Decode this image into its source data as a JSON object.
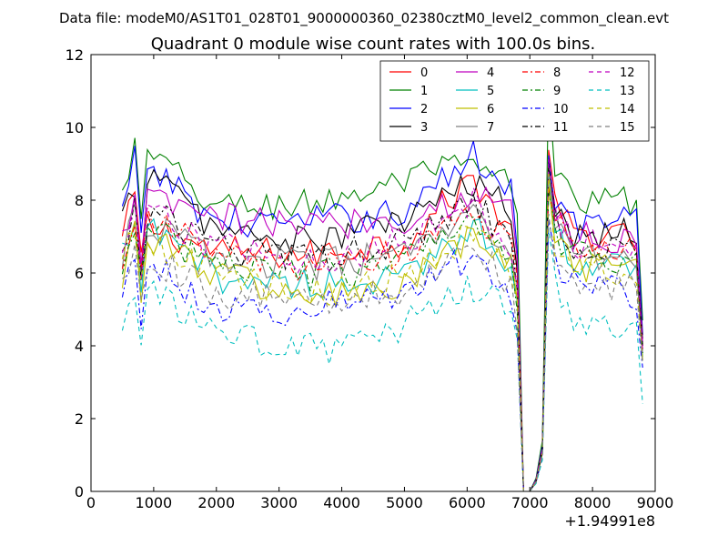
{
  "chart_data": {
    "type": "line",
    "suptitle": "Data file: modeM0/AS1T01_028T01_9000000360_02380cztM0_level2_common_clean.evt",
    "title": "Quadrant 0 module wise count rates with 100.0s bins.",
    "xlabel": "",
    "ylabel": "",
    "x_offset_label": "+1.94991e8",
    "xlim": [
      0,
      9000
    ],
    "ylim": [
      0,
      12
    ],
    "xticks": [
      0,
      1000,
      2000,
      3000,
      4000,
      5000,
      6000,
      7000,
      8000,
      9000
    ],
    "xtick_labels": [
      "0",
      "1000",
      "2000",
      "3000",
      "4000",
      "5000",
      "6000",
      "7000",
      "8000",
      "9000"
    ],
    "yticks": [
      0,
      2,
      4,
      6,
      8,
      10,
      12
    ],
    "ytick_labels": [
      "0",
      "2",
      "4",
      "6",
      "8",
      "10",
      "12"
    ],
    "x_range": [
      500,
      8800
    ],
    "bin_width": 100,
    "dip": {
      "x": [
        6800,
        6900,
        7000,
        7100,
        7200,
        7300
      ],
      "scale": [
        0.85,
        0.0,
        0.0,
        0.04,
        0.15,
        1.15
      ]
    },
    "legend": {
      "location": "upper right",
      "columns": 4
    },
    "series": [
      {
        "name": "0",
        "color": "#ff0000",
        "dash": "solid",
        "anchors": [
          [
            500,
            6.9
          ],
          [
            700,
            8.2
          ],
          [
            800,
            6.4
          ],
          [
            900,
            7.3
          ],
          [
            2000,
            6.6
          ],
          [
            3500,
            6.5
          ],
          [
            5000,
            6.9
          ],
          [
            6100,
            8.6
          ],
          [
            6800,
            6.9
          ],
          [
            7300,
            8.0
          ],
          [
            7700,
            7.1
          ],
          [
            8700,
            6.9
          ],
          [
            8800,
            4.0
          ]
        ]
      },
      {
        "name": "1",
        "color": "#008000",
        "dash": "solid",
        "anchors": [
          [
            500,
            8.1
          ],
          [
            700,
            9.5
          ],
          [
            800,
            7.2
          ],
          [
            900,
            9.3
          ],
          [
            2000,
            7.8
          ],
          [
            3500,
            7.9
          ],
          [
            5000,
            8.5
          ],
          [
            6000,
            9.0
          ],
          [
            6300,
            8.6
          ],
          [
            6800,
            8.5
          ],
          [
            7300,
            9.5
          ],
          [
            7700,
            7.9
          ],
          [
            8700,
            8.0
          ],
          [
            8800,
            4.7
          ]
        ]
      },
      {
        "name": "2",
        "color": "#0000ff",
        "dash": "solid",
        "anchors": [
          [
            500,
            7.6
          ],
          [
            700,
            9.1
          ],
          [
            800,
            6.7
          ],
          [
            900,
            9.0
          ],
          [
            2000,
            7.4
          ],
          [
            3500,
            7.4
          ],
          [
            5000,
            7.7
          ],
          [
            6100,
            9.2
          ],
          [
            6800,
            8.2
          ],
          [
            7300,
            8.4
          ],
          [
            7700,
            7.3
          ],
          [
            8700,
            7.5
          ],
          [
            8800,
            4.3
          ]
        ]
      },
      {
        "name": "3",
        "color": "#000000",
        "dash": "solid",
        "anchors": [
          [
            500,
            7.4
          ],
          [
            700,
            8.4
          ],
          [
            800,
            6.3
          ],
          [
            900,
            8.8
          ],
          [
            2000,
            7.2
          ],
          [
            3500,
            6.8
          ],
          [
            5000,
            7.5
          ],
          [
            6200,
            8.5
          ],
          [
            6800,
            7.4
          ],
          [
            7300,
            8.1
          ],
          [
            7700,
            7.1
          ],
          [
            8700,
            7.2
          ],
          [
            8800,
            4.2
          ]
        ]
      },
      {
        "name": "4",
        "color": "#bf00bf",
        "dash": "solid",
        "anchors": [
          [
            500,
            6.8
          ],
          [
            700,
            8.3
          ],
          [
            800,
            6.5
          ],
          [
            900,
            8.0
          ],
          [
            2000,
            7.5
          ],
          [
            3500,
            7.3
          ],
          [
            5000,
            7.5
          ],
          [
            6200,
            8.2
          ],
          [
            6800,
            7.6
          ],
          [
            7300,
            7.9
          ],
          [
            7700,
            7.0
          ],
          [
            8700,
            6.9
          ],
          [
            8800,
            4.1
          ]
        ]
      },
      {
        "name": "5",
        "color": "#00bfbf",
        "dash": "solid",
        "anchors": [
          [
            500,
            6.4
          ],
          [
            700,
            7.3
          ],
          [
            800,
            5.6
          ],
          [
            900,
            7.2
          ],
          [
            2000,
            5.9
          ],
          [
            3500,
            5.7
          ],
          [
            5000,
            5.8
          ],
          [
            6100,
            7.4
          ],
          [
            6800,
            6.1
          ],
          [
            7300,
            7.6
          ],
          [
            7700,
            6.3
          ],
          [
            8700,
            6.1
          ],
          [
            8800,
            3.7
          ]
        ]
      },
      {
        "name": "6",
        "color": "#bfbf00",
        "dash": "solid",
        "anchors": [
          [
            500,
            6.0
          ],
          [
            700,
            7.2
          ],
          [
            800,
            5.2
          ],
          [
            900,
            7.0
          ],
          [
            2000,
            6.0
          ],
          [
            3500,
            5.3
          ],
          [
            5000,
            5.6
          ],
          [
            6100,
            7.0
          ],
          [
            6800,
            6.0
          ],
          [
            7300,
            7.2
          ],
          [
            7700,
            6.1
          ],
          [
            8700,
            6.0
          ],
          [
            8800,
            3.6
          ]
        ]
      },
      {
        "name": "7",
        "color": "#808080",
        "dash": "solid",
        "anchors": [
          [
            500,
            6.5
          ],
          [
            700,
            7.5
          ],
          [
            800,
            5.8
          ],
          [
            900,
            7.4
          ],
          [
            2000,
            6.4
          ],
          [
            3500,
            6.2
          ],
          [
            5000,
            6.5
          ],
          [
            6100,
            7.5
          ],
          [
            6800,
            6.3
          ],
          [
            7300,
            7.5
          ],
          [
            7700,
            6.5
          ],
          [
            8700,
            6.4
          ],
          [
            8800,
            3.8
          ]
        ]
      },
      {
        "name": "8",
        "color": "#ff0000",
        "dash": "dashdot",
        "anchors": [
          [
            500,
            6.4
          ],
          [
            700,
            7.6
          ],
          [
            800,
            5.9
          ],
          [
            900,
            7.5
          ],
          [
            2000,
            6.5
          ],
          [
            3500,
            6.1
          ],
          [
            5000,
            6.5
          ],
          [
            6100,
            7.8
          ],
          [
            6800,
            6.4
          ],
          [
            7300,
            7.6
          ],
          [
            7700,
            6.7
          ],
          [
            8700,
            6.5
          ],
          [
            8800,
            3.9
          ]
        ]
      },
      {
        "name": "9",
        "color": "#008000",
        "dash": "dashdot",
        "anchors": [
          [
            500,
            6.2
          ],
          [
            700,
            7.2
          ],
          [
            800,
            5.7
          ],
          [
            900,
            7.2
          ],
          [
            2000,
            6.3
          ],
          [
            3500,
            5.9
          ],
          [
            5000,
            6.3
          ],
          [
            6100,
            7.7
          ],
          [
            6800,
            6.2
          ],
          [
            7300,
            7.4
          ],
          [
            7700,
            6.5
          ],
          [
            8700,
            6.3
          ],
          [
            8800,
            3.8
          ]
        ]
      },
      {
        "name": "10",
        "color": "#0000ff",
        "dash": "dashdot",
        "anchors": [
          [
            500,
            5.5
          ],
          [
            700,
            6.3
          ],
          [
            800,
            4.9
          ],
          [
            900,
            6.3
          ],
          [
            2000,
            5.0
          ],
          [
            3500,
            5.0
          ],
          [
            5000,
            5.5
          ],
          [
            6100,
            6.5
          ],
          [
            6800,
            5.4
          ],
          [
            7300,
            6.6
          ],
          [
            7700,
            5.7
          ],
          [
            8700,
            5.4
          ],
          [
            8800,
            3.4
          ]
        ]
      },
      {
        "name": "11",
        "color": "#000000",
        "dash": "dashdot",
        "anchors": [
          [
            500,
            6.7
          ],
          [
            700,
            7.8
          ],
          [
            800,
            6.1
          ],
          [
            900,
            7.7
          ],
          [
            2000,
            6.7
          ],
          [
            3500,
            6.4
          ],
          [
            5000,
            6.9
          ],
          [
            6100,
            8.0
          ],
          [
            6800,
            6.6
          ],
          [
            7300,
            7.8
          ],
          [
            7700,
            6.8
          ],
          [
            8700,
            6.7
          ],
          [
            8800,
            4.0
          ]
        ]
      },
      {
        "name": "12",
        "color": "#bf00bf",
        "dash": "dashed",
        "anchors": [
          [
            500,
            6.6
          ],
          [
            700,
            7.7
          ],
          [
            800,
            6.0
          ],
          [
            900,
            7.6
          ],
          [
            2000,
            6.7
          ],
          [
            3500,
            6.4
          ],
          [
            5000,
            6.8
          ],
          [
            6100,
            8.0
          ],
          [
            6800,
            6.6
          ],
          [
            7300,
            7.8
          ],
          [
            7700,
            6.8
          ],
          [
            8700,
            6.7
          ],
          [
            8800,
            3.9
          ]
        ]
      },
      {
        "name": "13",
        "color": "#00bfbf",
        "dash": "dashed",
        "anchors": [
          [
            500,
            4.4
          ],
          [
            700,
            5.6
          ],
          [
            800,
            4.1
          ],
          [
            900,
            5.5
          ],
          [
            2000,
            4.3
          ],
          [
            3500,
            3.9
          ],
          [
            4000,
            3.9
          ],
          [
            5000,
            4.6
          ],
          [
            6100,
            5.6
          ],
          [
            6800,
            4.7
          ],
          [
            7300,
            6.0
          ],
          [
            7700,
            4.6
          ],
          [
            8700,
            4.3
          ],
          [
            8800,
            2.4
          ]
        ]
      },
      {
        "name": "14",
        "color": "#bfbf00",
        "dash": "dashed",
        "anchors": [
          [
            500,
            6.3
          ],
          [
            700,
            7.1
          ],
          [
            800,
            5.8
          ],
          [
            900,
            7.0
          ],
          [
            2000,
            5.9
          ],
          [
            3500,
            5.4
          ],
          [
            5000,
            5.9
          ],
          [
            6100,
            7.1
          ],
          [
            6800,
            5.9
          ],
          [
            7300,
            7.2
          ],
          [
            7700,
            6.1
          ],
          [
            8700,
            6.0
          ],
          [
            8800,
            3.6
          ]
        ]
      },
      {
        "name": "15",
        "color": "#808080",
        "dash": "dashed",
        "anchors": [
          [
            500,
            5.7
          ],
          [
            700,
            6.7
          ],
          [
            800,
            5.1
          ],
          [
            900,
            6.5
          ],
          [
            2000,
            5.4
          ],
          [
            3500,
            5.2
          ],
          [
            5000,
            5.5
          ],
          [
            6100,
            6.7
          ],
          [
            6800,
            5.6
          ],
          [
            7300,
            6.9
          ],
          [
            7700,
            5.8
          ],
          [
            8700,
            5.6
          ],
          [
            8800,
            3.5
          ]
        ]
      }
    ]
  }
}
